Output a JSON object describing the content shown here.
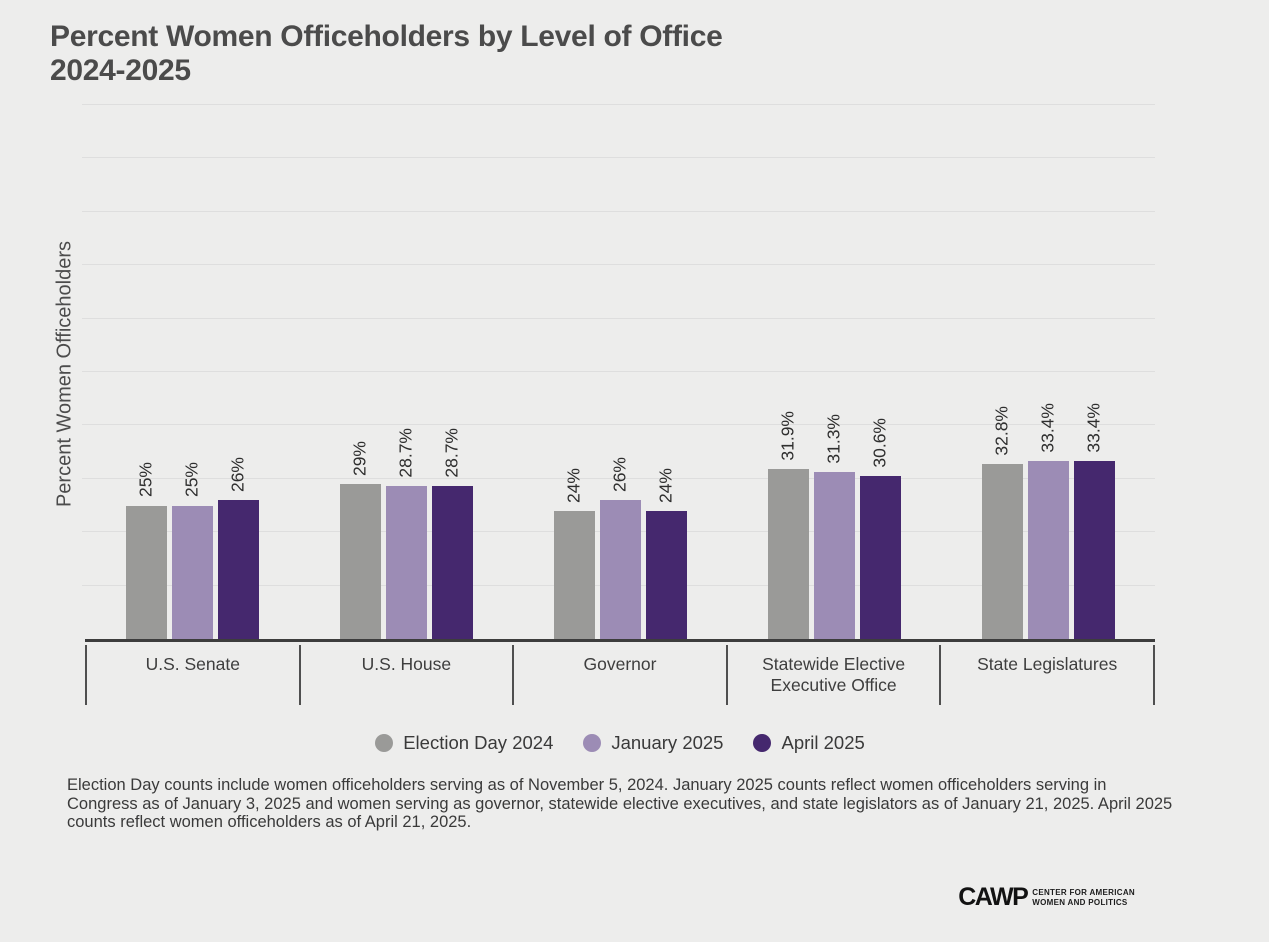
{
  "title": {
    "line1": "Percent Women Officeholders by Level of Office",
    "line2": "2024-2025"
  },
  "chart_data": {
    "type": "bar",
    "title": "Percent Women Officeholders by Level of Office 2024-2025",
    "xlabel": "",
    "ylabel": "Percent Women Officeholders",
    "ylim": [
      0,
      100
    ],
    "gridline_interval_percent": 10,
    "grid": "horizontal lines, no y tick labels",
    "legend_position": "bottom",
    "categories": [
      "U.S. Senate",
      "U.S. House",
      "Governor",
      "Statewide Elective Executive Office",
      "State Legislatures"
    ],
    "series": [
      {
        "name": "Election Day 2024",
        "color": "#9a9a98",
        "values": [
          25,
          29,
          24,
          31.9,
          32.8
        ],
        "labels": [
          "25%",
          "29%",
          "24%",
          "31.9%",
          "32.8%"
        ]
      },
      {
        "name": "January 2025",
        "color": "#9c8cb5",
        "values": [
          25,
          28.7,
          26,
          31.3,
          33.4
        ],
        "labels": [
          "25%",
          "28.7%",
          "26%",
          "31.3%",
          "33.4%"
        ]
      },
      {
        "name": "April 2025",
        "color": "#45286e",
        "values": [
          26,
          28.7,
          24,
          30.6,
          33.4
        ],
        "labels": [
          "26%",
          "28.7%",
          "24%",
          "30.6%",
          "33.4%"
        ]
      }
    ]
  },
  "footnote": "Election Day counts include women officeholders serving as of November 5, 2024. January 2025 counts reflect women officeholders serving in Congress as of January 3, 2025 and women serving as governor, statewide elective executives, and state legislators as of January 21, 2025. April 2025 counts reflect women officeholders as of April 21, 2025.",
  "logo": {
    "acronym": "CAWP",
    "line1": "CENTER FOR AMERICAN",
    "line2": "WOMEN AND POLITICS"
  },
  "colors": {
    "background": "#ededec",
    "gridline": "#dedede",
    "axis": "#3d3d3d",
    "title_text": "#4b4b4b"
  }
}
